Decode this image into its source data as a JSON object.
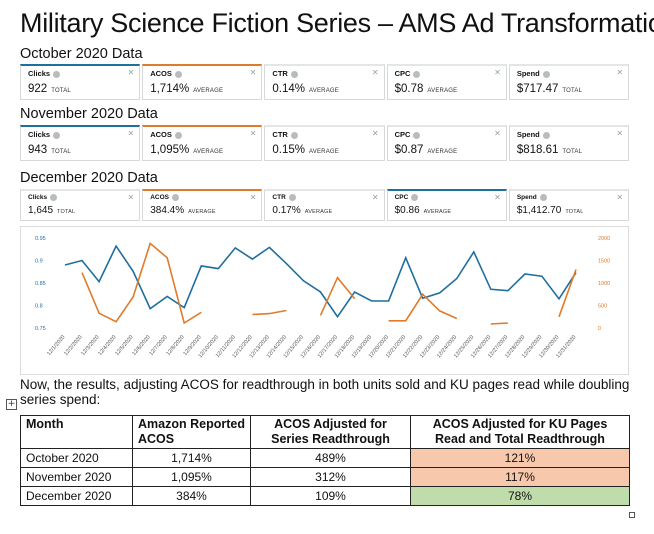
{
  "title": "Military Science Fiction Series – AMS Ad Transformation",
  "sections": [
    {
      "heading": "October 2020 Data",
      "metrics": [
        {
          "label": "Clicks",
          "value": "922",
          "unit": "TOTAL",
          "accent": "#1f6f9f"
        },
        {
          "label": "ACOS",
          "value": "1,714%",
          "unit": "AVERAGE",
          "accent": "#e07b2b"
        },
        {
          "label": "CTR",
          "value": "0.14%",
          "unit": "AVERAGE",
          "accent": "#e3e6e6"
        },
        {
          "label": "CPC",
          "value": "$0.78",
          "unit": "AVERAGE",
          "accent": "#e3e6e6"
        },
        {
          "label": "Spend",
          "value": "$717.47",
          "unit": "TOTAL",
          "accent": "#e3e6e6"
        }
      ]
    },
    {
      "heading": "November 2020 Data",
      "metrics": [
        {
          "label": "Clicks",
          "value": "943",
          "unit": "TOTAL",
          "accent": "#1f6f9f"
        },
        {
          "label": "ACOS",
          "value": "1,095%",
          "unit": "AVERAGE",
          "accent": "#e07b2b"
        },
        {
          "label": "CTR",
          "value": "0.15%",
          "unit": "AVERAGE",
          "accent": "#e3e6e6"
        },
        {
          "label": "CPC",
          "value": "$0.87",
          "unit": "AVERAGE",
          "accent": "#e3e6e6"
        },
        {
          "label": "Spend",
          "value": "$818.61",
          "unit": "TOTAL",
          "accent": "#e3e6e6"
        }
      ]
    },
    {
      "heading": "December 2020 Data",
      "metrics": [
        {
          "label": "Clicks",
          "value": "1,645",
          "unit": "TOTAL",
          "accent": "#e3e6e6"
        },
        {
          "label": "ACOS",
          "value": "384.4%",
          "unit": "AVERAGE",
          "accent": "#e07b2b"
        },
        {
          "label": "CTR",
          "value": "0.17%",
          "unit": "AVERAGE",
          "accent": "#e3e6e6"
        },
        {
          "label": "CPC",
          "value": "$0.86",
          "unit": "AVERAGE",
          "accent": "#1f6f9f"
        },
        {
          "label": "Spend",
          "value": "$1,412.70",
          "unit": "TOTAL",
          "accent": "#e3e6e6"
        }
      ]
    }
  ],
  "chart_data": {
    "type": "line",
    "x": [
      "12/1/2020",
      "12/2/2020",
      "12/3/2020",
      "12/4/2020",
      "12/5/2020",
      "12/6/2020",
      "12/7/2020",
      "12/8/2020",
      "12/9/2020",
      "12/10/2020",
      "12/11/2020",
      "12/12/2020",
      "12/13/2020",
      "12/14/2020",
      "12/15/2020",
      "12/16/2020",
      "12/17/2020",
      "12/18/2020",
      "12/19/2020",
      "12/20/2020",
      "12/21/2020",
      "12/22/2020",
      "12/23/2020",
      "12/24/2020",
      "12/25/2020",
      "12/26/2020",
      "12/27/2020",
      "12/28/2020",
      "12/29/2020",
      "12/30/2020",
      "12/31/2020"
    ],
    "y_left": {
      "ticks": [
        "0.75",
        "0.8",
        "0.85",
        "0.9",
        "0.95"
      ],
      "min": 0.75,
      "max": 0.95,
      "color": "#1f6f9f"
    },
    "y_right": {
      "ticks": [
        "0",
        "500",
        "1000",
        "1500",
        "2000"
      ],
      "min": 0,
      "max": 2000,
      "color": "#e07b2b"
    },
    "series": [
      {
        "axis": "left",
        "color": "#1f6f9f",
        "values": [
          0.89,
          0.9,
          0.853,
          0.932,
          0.876,
          0.793,
          0.82,
          0.795,
          0.888,
          0.882,
          0.928,
          0.903,
          0.929,
          0.893,
          0.855,
          0.83,
          0.775,
          0.83,
          0.81,
          0.81,
          0.906,
          0.816,
          0.828,
          0.86,
          0.919,
          0.836,
          0.833,
          0.87,
          0.865,
          0.815,
          0.873
        ]
      },
      {
        "axis": "right",
        "color": "#e07b2b",
        "values": [
          null,
          1230,
          330,
          140,
          690,
          1880,
          1560,
          110,
          null,
          null,
          null,
          300,
          null,
          390,
          null,
          null,
          1120,
          650,
          null,
          160,
          160,
          750,
          380,
          210,
          null,
          null,
          110,
          null,
          null,
          null,
          1300
        ],
        "segments": [
          [
            1,
            7
          ],
          [
            7,
            8
          ],
          [
            11,
            13
          ],
          [
            15,
            17
          ],
          [
            19,
            23
          ],
          [
            25,
            26
          ],
          [
            29,
            30
          ]
        ],
        "extra": [
          {
            "i": 8,
            "v": 350
          },
          {
            "i": 12,
            "v": 320
          },
          {
            "i": 15,
            "v": 280
          },
          {
            "i": 25,
            "v": 90
          },
          {
            "i": 29,
            "v": 250
          }
        ]
      }
    ]
  },
  "note": "Now, the results, adjusting ACOS for readthrough in both units sold and KU pages read while doubling series spend:",
  "table": {
    "headers": [
      "Month",
      "Amazon Reported ACOS",
      "ACOS Adjusted for Series Readthrough",
      "ACOS Adjusted for KU Pages Read and Total Readthrough"
    ],
    "rows": [
      [
        "October 2020",
        "1,714%",
        "489%",
        "121%"
      ],
      [
        "November 2020",
        "1,095%",
        "312%",
        "117%"
      ],
      [
        "December 2020",
        "384%",
        "109%",
        "78%"
      ]
    ],
    "highlight_colors": [
      "#f8c8ad",
      "#f8c8ad",
      "#bfdcaa"
    ]
  }
}
